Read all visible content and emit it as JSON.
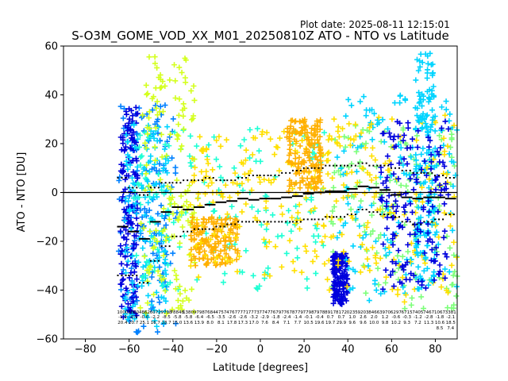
{
  "header": {
    "plot_date": "Plot date: 2025-08-11 12:15:01"
  },
  "chart_data": {
    "type": "scatter",
    "title": "S-O3M_GOME_VOD_XX_M01_20250810Z ATO - NTO vs Latitude",
    "xlabel": "Latitude [degrees]",
    "ylabel": "ATO - NTO [DU]",
    "xlim": [
      -90,
      90
    ],
    "ylim": [
      -60,
      60
    ],
    "xticks": [
      -80,
      -60,
      -40,
      -20,
      0,
      20,
      40,
      60,
      80
    ],
    "yticks": [
      -60,
      -40,
      -20,
      0,
      20,
      40,
      60
    ],
    "zero_line": 0,
    "grid": false,
    "legend": "none",
    "colors": {
      "dark_blue": "#0000dd",
      "blue": "#0080ff",
      "cyan": "#00d4ff",
      "aqua": "#1effd4",
      "green": "#7cff79",
      "yellow_green": "#d4ff1e",
      "yellow": "#ffe000",
      "orange": "#ffb000"
    },
    "scatter_clouds": [
      {
        "color": "blue",
        "x_range": [
          -65,
          -38
        ],
        "y_range": [
          -58,
          36
        ]
      },
      {
        "color": "dark_blue",
        "x_range": [
          -64,
          -56
        ],
        "y_range": [
          -52,
          35
        ]
      },
      {
        "color": "cyan",
        "x_range": [
          -62,
          -42
        ],
        "y_range": [
          -55,
          30
        ]
      },
      {
        "color": "aqua",
        "x_range": [
          -58,
          32
        ],
        "y_range": [
          -40,
          28
        ]
      },
      {
        "color": "yellow_green",
        "x_range": [
          -55,
          -30
        ],
        "y_range": [
          -50,
          56
        ]
      },
      {
        "color": "orange",
        "x_range": [
          -32,
          -10
        ],
        "y_range": [
          -30,
          -10
        ]
      },
      {
        "color": "yellow",
        "x_range": [
          -32,
          32
        ],
        "y_range": [
          -35,
          25
        ]
      },
      {
        "color": "orange",
        "x_range": [
          12,
          28
        ],
        "y_range": [
          0,
          30
        ]
      },
      {
        "color": "green",
        "x_range": [
          32,
          90
        ],
        "y_range": [
          -48,
          28
        ]
      },
      {
        "color": "dark_blue",
        "x_range": [
          33,
          40
        ],
        "y_range": [
          -46,
          -25
        ]
      },
      {
        "color": "cyan",
        "x_range": [
          35,
          90
        ],
        "y_range": [
          -45,
          40
        ]
      },
      {
        "color": "yellow",
        "x_range": [
          28,
          90
        ],
        "y_range": [
          -45,
          32
        ]
      },
      {
        "color": "cyan",
        "x_range": [
          71,
          80
        ],
        "y_range": [
          -40,
          57
        ]
      },
      {
        "color": "dark_blue",
        "x_range": [
          55,
          86
        ],
        "y_range": [
          -40,
          30
        ]
      }
    ],
    "mean_bins": {
      "x": [
        -63,
        -58,
        -53,
        -48,
        -43,
        -38,
        -33,
        -28,
        -23,
        -18,
        -13,
        -8,
        -3,
        2,
        7,
        12,
        17,
        22,
        27,
        32,
        37,
        42,
        47,
        52,
        57,
        62,
        67,
        72,
        77,
        82,
        87
      ],
      "mean": [
        -14,
        -16,
        -19,
        -12,
        -8,
        -6,
        -7,
        -6,
        -5,
        -4,
        -3.5,
        -2.5,
        -3,
        -2.5,
        -2.5,
        -2,
        -1.5,
        -0.5,
        0,
        0.5,
        0.5,
        1.5,
        2.5,
        2,
        1,
        -1,
        -2,
        -2.5,
        -2,
        -2,
        -2.5
      ],
      "upper": [
        6,
        2,
        -1,
        2,
        4,
        4,
        5,
        5,
        6,
        5,
        5,
        6,
        7,
        7,
        7,
        8,
        9,
        10,
        10,
        11,
        11,
        11,
        12,
        11,
        11,
        10,
        9,
        8,
        8,
        7,
        6
      ],
      "lower": [
        -34,
        -34,
        -37,
        -28,
        -22,
        -18,
        -16,
        -15,
        -15,
        -14,
        -13,
        -12,
        -12,
        -12,
        -12,
        -12,
        -12,
        -11,
        -11,
        -10,
        -10,
        -9,
        -7,
        -8,
        -9,
        -10,
        -12,
        -13,
        -12,
        -11,
        -9
      ]
    },
    "count_labels": {
      "row1": [
        "1000",
        "3060",
        "4862",
        "6072",
        "9798",
        "78848",
        "1380",
        "9798",
        "7684",
        "4757",
        "4767",
        "7771",
        "7773",
        "7747",
        "7679",
        "7767",
        "8779",
        "7798",
        "7978",
        "8917",
        "8172",
        "0235",
        "9203",
        "8466",
        "3970",
        "6297",
        "6715",
        "7405",
        "7467",
        "1067",
        "3381"
      ],
      "row2": [
        "-1.9",
        "-0.9",
        "-0.0",
        "-2.2",
        "-8.5",
        "-5.8",
        "-5.8",
        "-6.4",
        "-6.5",
        "-3.5",
        "-2.6",
        "-2.6",
        "-3.2",
        "-2.9",
        "-1.8",
        "-2.4",
        "-1.4",
        "-0.1",
        "-0.4",
        "0.7",
        "0.7",
        "1.0",
        "2.6",
        "2.0",
        "1.2",
        "-0.6",
        "-0.3",
        "-1.2",
        "-2.8",
        "-1.8",
        "-2.1"
      ],
      "row3": [
        "20.4",
        "20.7",
        "25.1",
        "16.7",
        "18.7",
        "15.0",
        "13.6",
        "13.9",
        "8.0",
        "8.1",
        "17.8",
        "17.3",
        "17.0",
        "7.6",
        "8.4",
        "7.1",
        "7.7",
        "10.5",
        "19.6",
        "19.7",
        "29.9",
        "9.6",
        "9.6",
        "10.0",
        "9.8",
        "10.2",
        "9.3",
        "7.2",
        "11.3",
        "10.6",
        "18.5"
      ],
      "row4": [
        "",
        "",
        "",
        "",
        "",
        "",
        "",
        "",
        "",
        "",
        "",
        "",
        "",
        "",
        "",
        "",
        "",
        "",
        "",
        "",
        "",
        "",
        "",
        "",
        "",
        "",
        "",
        "",
        "",
        "8.5",
        "7.4"
      ]
    }
  }
}
